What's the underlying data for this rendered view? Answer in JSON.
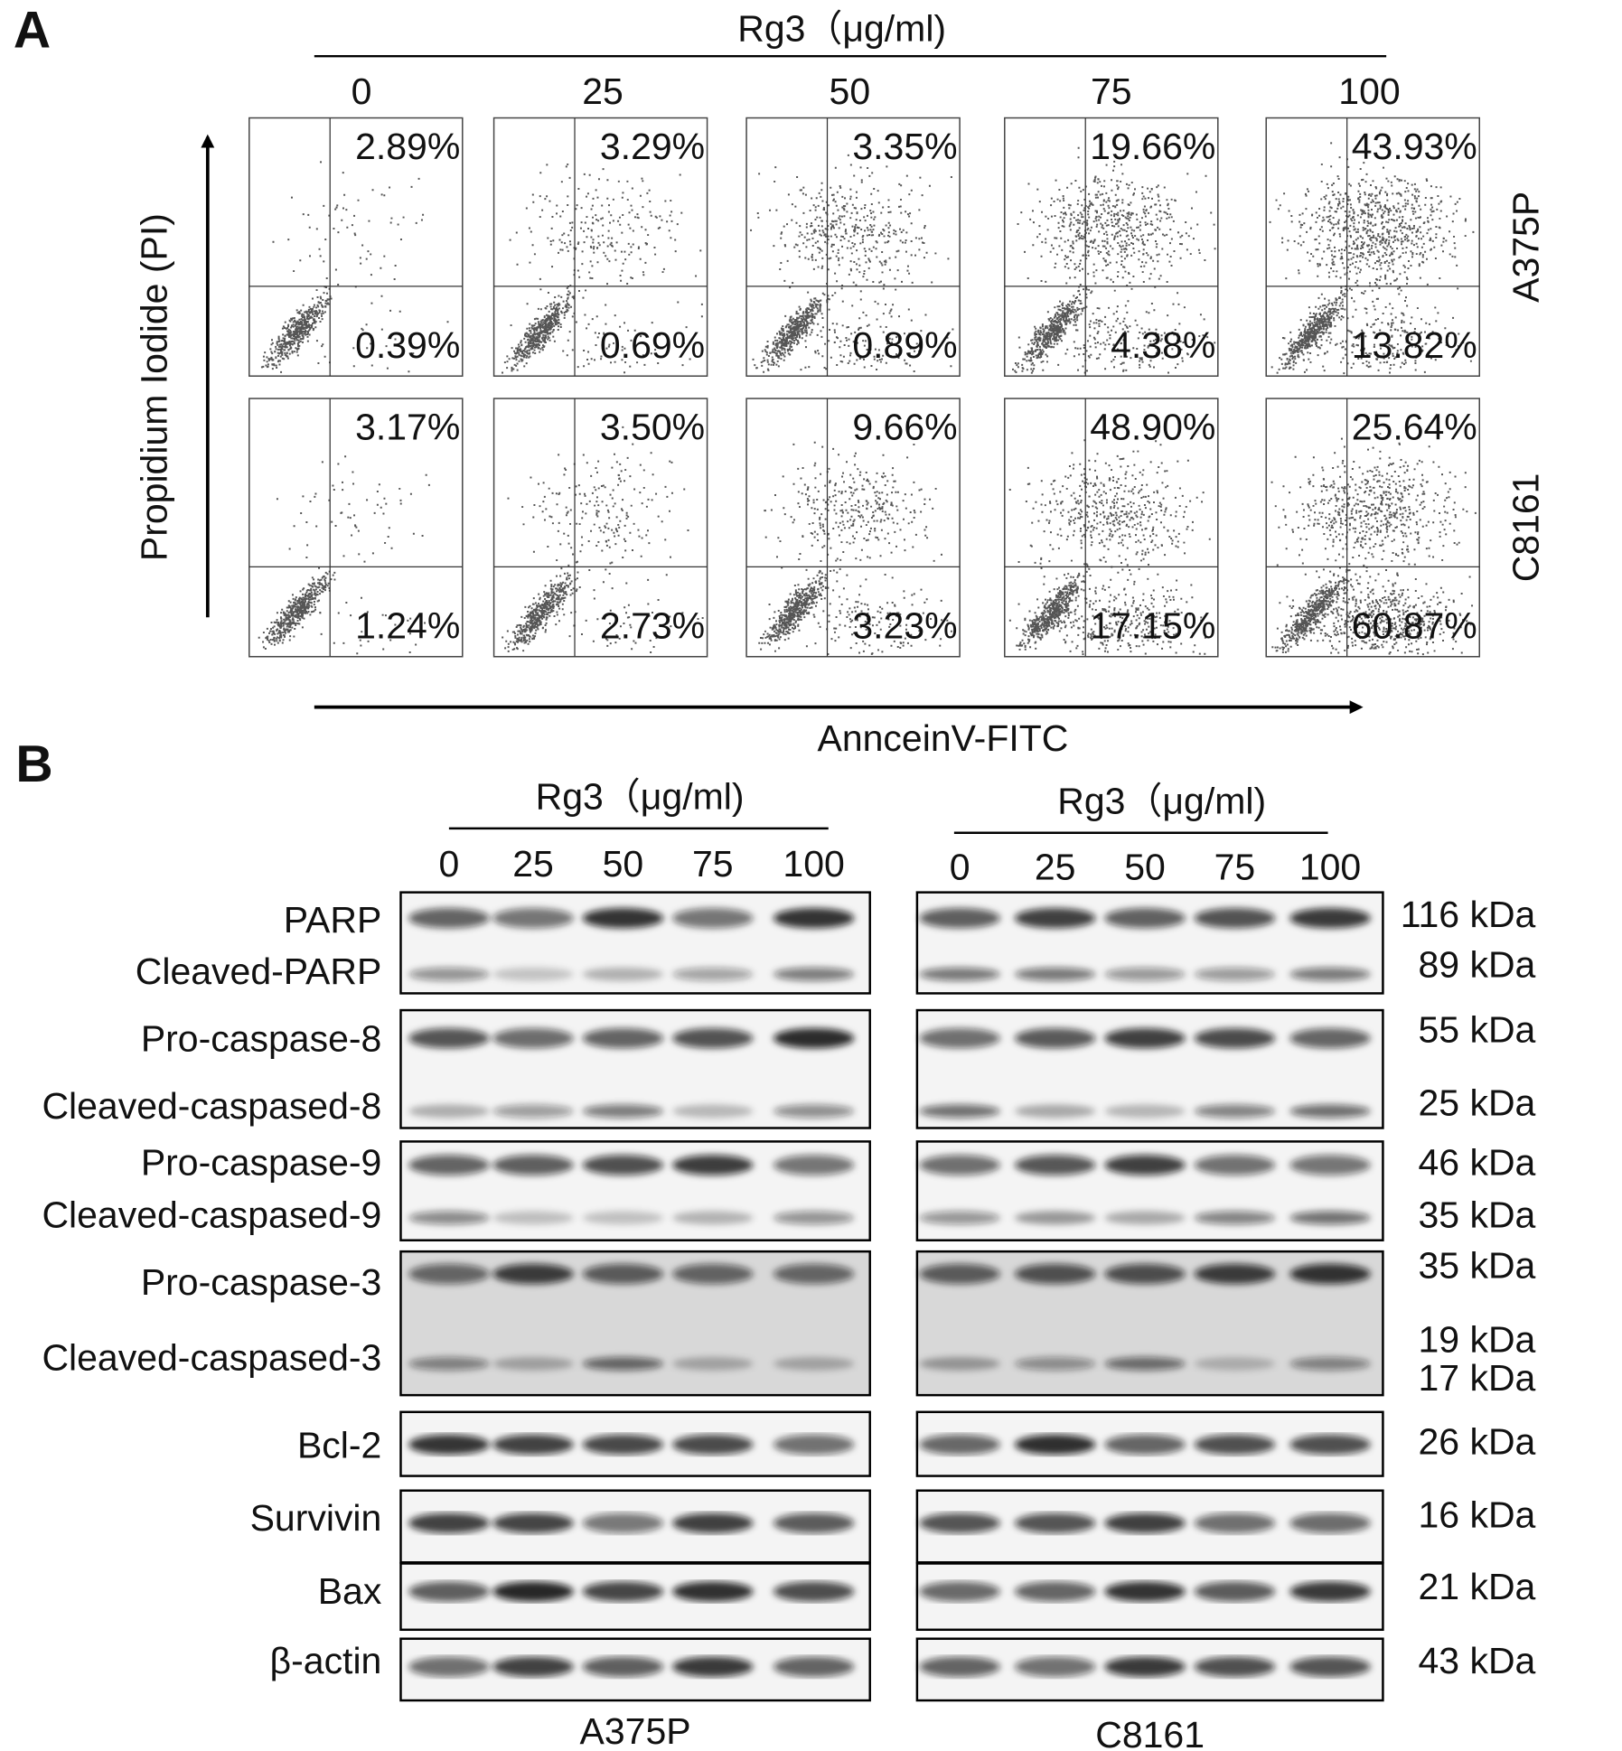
{
  "panel_a": {
    "label": "A",
    "treatment": "Rg3（μg/ml)",
    "doses": [
      "0",
      "25",
      "50",
      "75",
      "100"
    ],
    "y_axis_label": "Propidium Iodide (PI)",
    "x_axis_label": "AnnceinV-FITC",
    "rows": [
      {
        "cell_line": "A375P",
        "upper_right": [
          "2.89%",
          "3.29%",
          "3.35%",
          "19.66%",
          "43.93%"
        ],
        "lower_right": [
          "0.39%",
          "0.69%",
          "0.89%",
          "4.38%",
          "13.82%"
        ]
      },
      {
        "cell_line": "C8161",
        "upper_right": [
          "3.17%",
          "3.50%",
          "9.66%",
          "48.90%",
          "25.64%"
        ],
        "lower_right": [
          "1.24%",
          "2.73%",
          "3.23%",
          "17.15%",
          "60.87%"
        ]
      }
    ]
  },
  "panel_b": {
    "label": "B",
    "blots": [
      {
        "treatment": "Rg3（μg/ml)",
        "doses": [
          "0",
          "25",
          "50",
          "75",
          "100"
        ],
        "cell_line": "A375P"
      },
      {
        "treatment": "Rg3（μg/ml)",
        "doses": [
          "0",
          "25",
          "50",
          "75",
          "100"
        ],
        "cell_line": "C8161"
      }
    ],
    "proteins": [
      "PARP",
      "Cleaved-PARP",
      "Pro-caspase-8",
      "Cleaved-caspased-8",
      "Pro-caspase-9",
      "Cleaved-caspased-9",
      "Pro-caspase-3",
      "Cleaved-caspased-3",
      "Bcl-2",
      "Survivin",
      "Bax",
      "β-actin"
    ],
    "sizes": [
      "116 kDa",
      "89 kDa",
      "55 kDa",
      "25 kDa",
      "46 kDa",
      "35 kDa",
      "35 kDa",
      "19 kDa",
      "17 kDa",
      "26 kDa",
      "16 kDa",
      "21 kDa",
      "43 kDa"
    ]
  }
}
